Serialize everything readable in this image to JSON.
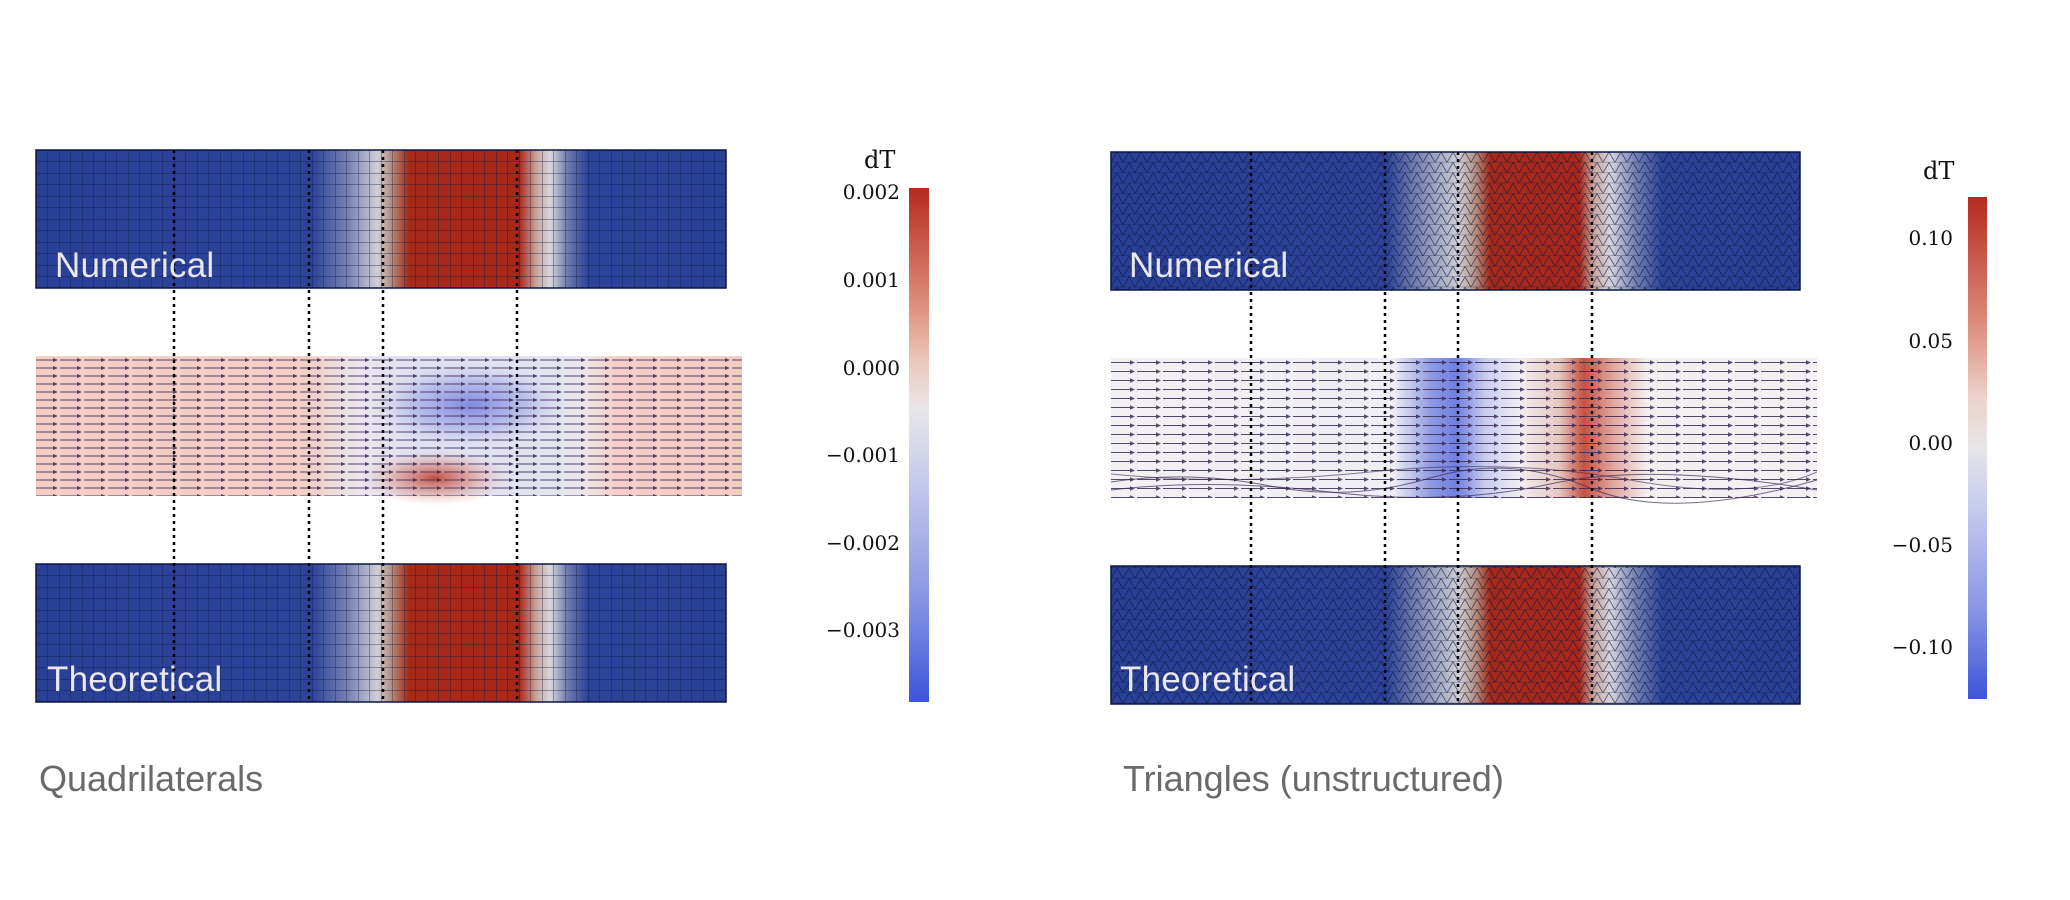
{
  "panels": [
    {
      "caption": "Quadrilaterals",
      "top_label": "Numerical",
      "bottom_label": "Theoretical",
      "mesh": "quadrilateral",
      "colorbar": {
        "title": "dT",
        "ticks": [
          "0.002",
          "0.001",
          "0.000",
          "−0.001",
          "−0.002",
          "−0.003"
        ],
        "tick_values": [
          0.002,
          0.001,
          0.0,
          -0.001,
          -0.002,
          -0.003
        ],
        "range": [
          -0.0039,
          0.002
        ]
      }
    },
    {
      "caption": "Triangles (unstructured)",
      "top_label": "Numerical",
      "bottom_label": "Theoretical",
      "mesh": "triangle",
      "colorbar": {
        "title": "dT",
        "ticks": [
          "0.10",
          "0.05",
          "0.00",
          "−0.05",
          "−0.10"
        ],
        "tick_values": [
          0.1,
          0.05,
          0.0,
          -0.05,
          -0.1
        ],
        "range": [
          -0.125,
          0.12
        ]
      }
    }
  ],
  "colors": {
    "cold": "#2a3f96",
    "hot": "#a8271a",
    "neutral": "#e8e8ec",
    "cb_high": "#b52a1f",
    "cb_mid": "#e6e4e6",
    "cb_low": "#3d55d8"
  }
}
